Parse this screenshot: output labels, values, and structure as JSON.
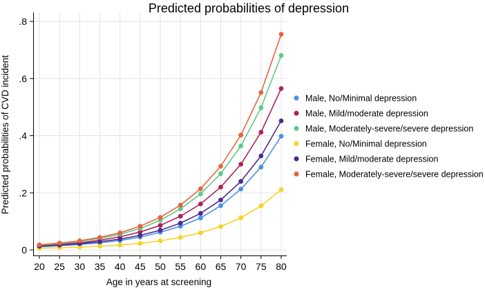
{
  "chart_data": {
    "type": "line",
    "title": "Predicted probabilities of depression",
    "xlabel": "Age in years at screening",
    "ylabel": "Predicted probabilities of CVD incident",
    "x": [
      20,
      25,
      30,
      35,
      40,
      45,
      50,
      55,
      60,
      65,
      70,
      75,
      80
    ],
    "xlim": [
      20,
      80
    ],
    "ylim": [
      0,
      0.8
    ],
    "yticks": [
      0,
      0.2,
      0.4,
      0.6,
      0.8
    ],
    "ytick_labels": [
      "0",
      ".2",
      ".4",
      ".6",
      ".8"
    ],
    "xtick_labels": [
      "20",
      "25",
      "30",
      "35",
      "40",
      "45",
      "50",
      "55",
      "60",
      "65",
      "70",
      "75",
      "80"
    ],
    "grid": true,
    "legend_position": "right",
    "series": [
      {
        "name": "Male, No/Minimal depression",
        "color": "#4a90e8",
        "values": [
          0.011,
          0.015,
          0.019,
          0.025,
          0.033,
          0.045,
          0.062,
          0.083,
          0.112,
          0.155,
          0.213,
          0.29,
          0.398
        ]
      },
      {
        "name": "Male, Mild/moderate depression",
        "color": "#b01f5a",
        "values": [
          0.015,
          0.019,
          0.025,
          0.034,
          0.046,
          0.063,
          0.086,
          0.118,
          0.161,
          0.22,
          0.3,
          0.412,
          0.565
        ]
      },
      {
        "name": "Male, Moderately-severe/severe depression",
        "color": "#60c888",
        "values": [
          0.017,
          0.022,
          0.03,
          0.04,
          0.055,
          0.075,
          0.104,
          0.144,
          0.196,
          0.267,
          0.364,
          0.498,
          0.681
        ]
      },
      {
        "name": "Female, No/Minimal depression",
        "color": "#f5d327",
        "values": [
          0.006,
          0.008,
          0.01,
          0.013,
          0.017,
          0.023,
          0.032,
          0.044,
          0.06,
          0.082,
          0.113,
          0.154,
          0.211
        ]
      },
      {
        "name": "Female, Mild/moderate depression",
        "color": "#4b2b8c",
        "values": [
          0.013,
          0.017,
          0.022,
          0.029,
          0.038,
          0.051,
          0.069,
          0.094,
          0.128,
          0.175,
          0.24,
          0.329,
          0.452
        ]
      },
      {
        "name": "Female, Moderately-severe/severe depression",
        "color": "#e8633c",
        "values": [
          0.018,
          0.024,
          0.032,
          0.044,
          0.06,
          0.083,
          0.114,
          0.157,
          0.214,
          0.293,
          0.402,
          0.551,
          0.755
        ]
      }
    ]
  }
}
